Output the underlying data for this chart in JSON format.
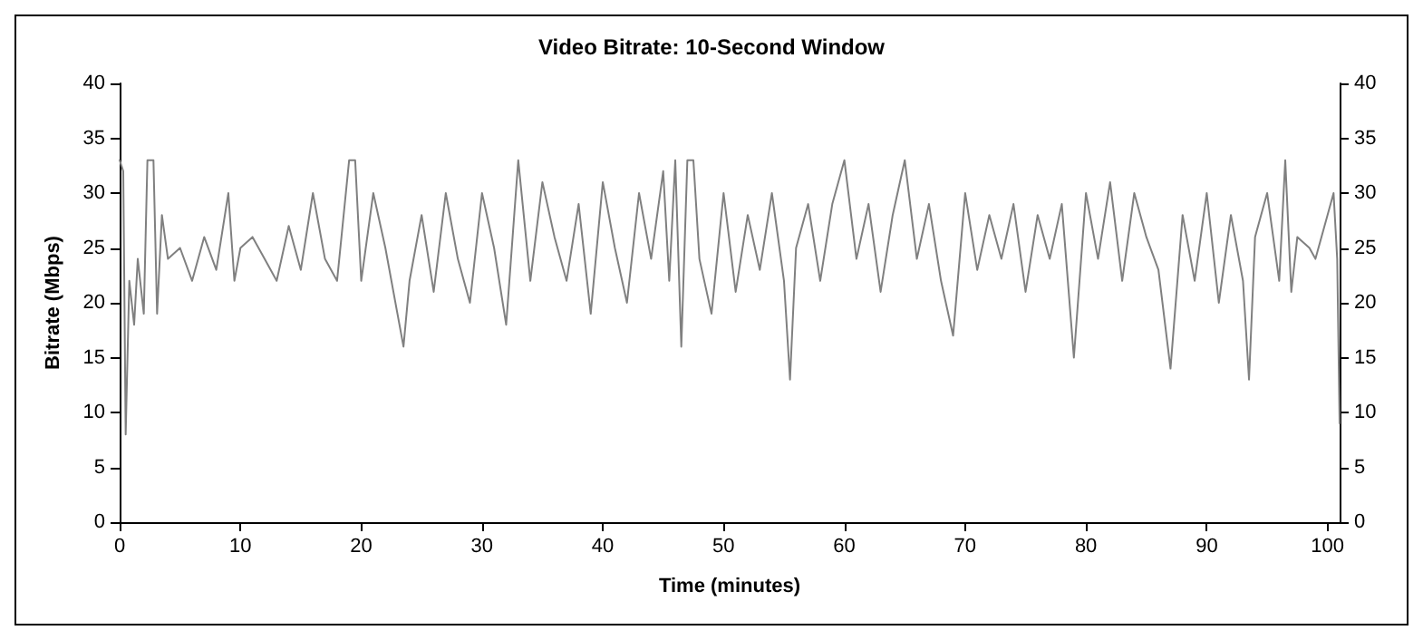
{
  "chart_data": {
    "type": "line",
    "title": "Video Bitrate: 10-Second Window",
    "xlabel": "Time (minutes)",
    "ylabel": "Bitrate (Mbps)",
    "x": [
      0,
      0.3,
      0.5,
      0.8,
      1.2,
      1.5,
      2,
      2.3,
      2.8,
      3.1,
      3.5,
      4,
      5,
      6,
      7,
      8,
      9,
      9.5,
      10,
      11,
      12,
      13,
      14,
      15,
      16,
      17,
      18,
      19,
      19.5,
      20,
      21,
      22,
      23,
      23.5,
      24,
      25,
      26,
      27,
      28,
      29,
      30,
      31,
      32,
      33,
      34,
      35,
      36,
      37,
      38,
      39,
      40,
      41,
      42,
      43,
      44,
      45,
      45.5,
      46,
      46.5,
      47,
      47.5,
      48,
      49,
      50,
      51,
      52,
      53,
      54,
      55,
      55.5,
      56,
      57,
      58,
      59,
      60,
      61,
      62,
      63,
      64,
      65,
      66,
      67,
      68,
      69,
      70,
      71,
      72,
      73,
      74,
      75,
      76,
      77,
      78,
      79,
      80,
      81,
      82,
      83,
      84,
      85,
      86,
      87,
      88,
      89,
      90,
      91,
      92,
      93,
      93.5,
      94,
      95,
      96,
      96.5,
      97,
      97.5,
      98.5,
      99,
      100,
      100.5,
      100.8,
      101
    ],
    "series": [
      {
        "color": "#808080",
        "values": [
          33,
          32,
          8,
          22,
          18,
          24,
          19,
          33,
          33,
          19,
          28,
          24,
          25,
          22,
          26,
          23,
          30,
          22,
          25,
          26,
          24,
          22,
          27,
          23,
          30,
          24,
          22,
          33,
          33,
          22,
          30,
          25,
          19,
          16,
          22,
          28,
          21,
          30,
          24,
          20,
          30,
          25,
          18,
          33,
          22,
          31,
          26,
          22,
          29,
          19,
          31,
          25,
          20,
          30,
          24,
          32,
          22,
          33,
          16,
          33,
          33,
          24,
          19,
          30,
          21,
          28,
          23,
          30,
          22,
          13,
          25,
          29,
          22,
          29,
          33,
          24,
          29,
          21,
          28,
          33,
          24,
          29,
          22,
          17,
          30,
          23,
          28,
          24,
          29,
          21,
          28,
          24,
          29,
          15,
          30,
          24,
          31,
          22,
          30,
          26,
          23,
          14,
          28,
          22,
          30,
          20,
          28,
          22,
          13,
          26,
          30,
          22,
          33,
          21,
          26,
          25,
          24,
          28,
          30,
          24,
          9
        ]
      }
    ],
    "xlim": [
      0,
      101
    ],
    "xticks": [
      0,
      10,
      20,
      30,
      40,
      50,
      60,
      70,
      80,
      90,
      100
    ],
    "ylim": [
      0,
      40
    ],
    "yticks": [
      0,
      5,
      10,
      15,
      20,
      25,
      30,
      35,
      40
    ],
    "y2lim": [
      0,
      40
    ],
    "y2ticks": [
      0,
      5,
      10,
      15,
      20,
      25,
      30,
      35,
      40
    ],
    "grid": false,
    "marker": "none",
    "line_style": "solid"
  }
}
